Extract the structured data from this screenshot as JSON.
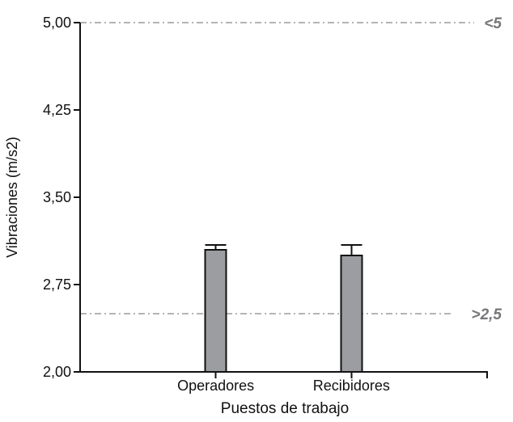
{
  "chart_data": {
    "type": "bar",
    "title": "",
    "categories": [
      "Operadores",
      "Recibidores"
    ],
    "values": [
      3.05,
      3.0
    ],
    "errors_plus": [
      0.04,
      0.09
    ],
    "xlabel": "Puestos de trabajo",
    "ylabel": "Vibraciones (m/s2)",
    "ylim": [
      2.0,
      5.0
    ],
    "yticks": [
      2.0,
      2.75,
      3.5,
      4.25,
      5.0
    ],
    "ytick_labels": [
      "2,00",
      "2,75",
      "3,50",
      "4,25",
      "5,00"
    ],
    "decimal_separator": ",",
    "grid": false,
    "legend": false,
    "bar_color": "#9b9da0",
    "bar_border_color": "#111111",
    "error_bar_color": "#111111",
    "axis_color": "#111111",
    "reference_lines": [
      {
        "value": 5.0,
        "label": "<5"
      },
      {
        "value": 2.5,
        "label": ">2,5"
      }
    ],
    "reference_line_color": "#9c9c9c",
    "reference_label_color": "#77787b",
    "background": "#ffffff"
  }
}
